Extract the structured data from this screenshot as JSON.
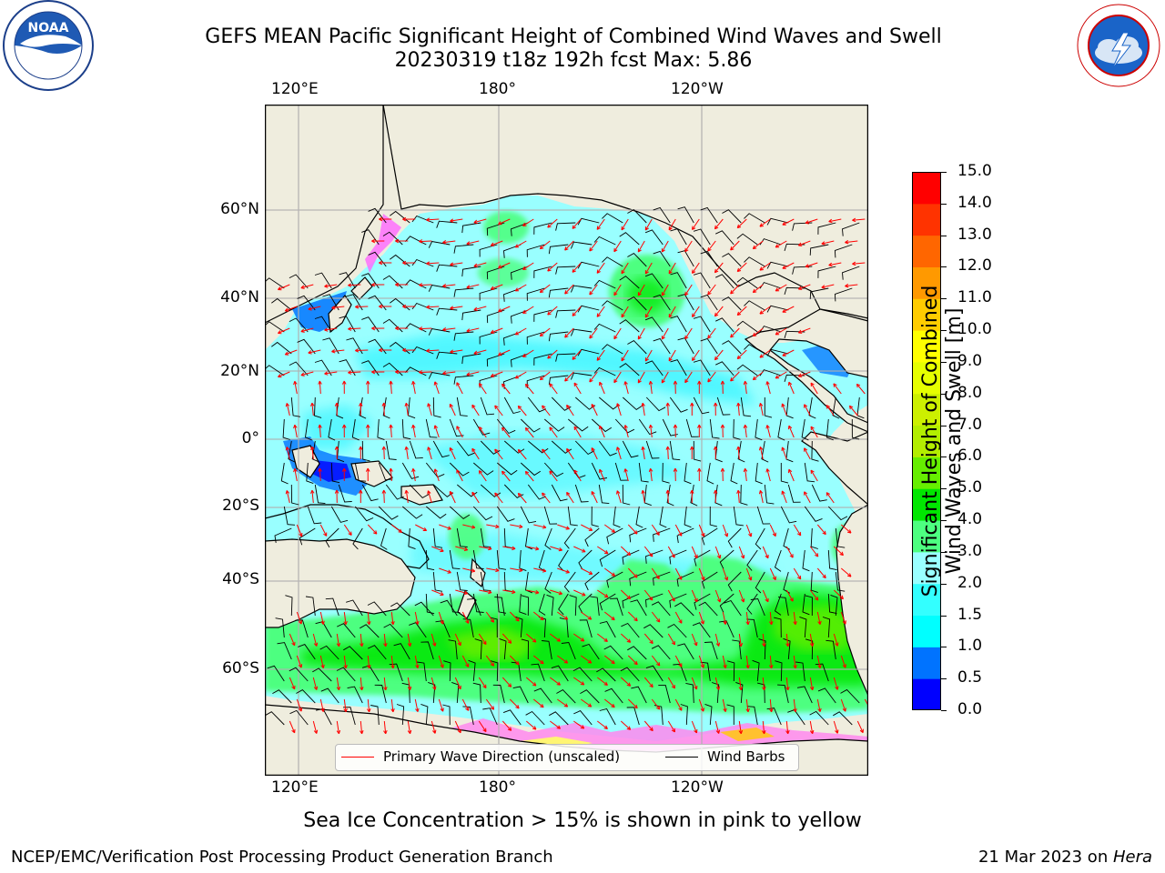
{
  "header": {
    "title_line1": "GEFS MEAN Pacific Significant Height of Combined Wind Waves and Swell",
    "title_line2": "20230319 t18z 192h fcst   Max: 5.86"
  },
  "logos": {
    "left": {
      "name": "noaa-logo",
      "text": "NOAA"
    },
    "right": {
      "name": "nws-logo",
      "text": "NATIONAL WEATHER SERVICE"
    }
  },
  "map": {
    "x_ticks_top": [
      "120°E",
      "180°",
      "120°W"
    ],
    "x_ticks_bottom": [
      "120°E",
      "180°",
      "120°W"
    ],
    "y_ticks": [
      "60°N",
      "40°N",
      "20°N",
      "0°",
      "20°S",
      "40°S",
      "60°S"
    ],
    "colors": {
      "land": "#efedde",
      "ocean_low": "#33e6ff",
      "wave_dir": "#ff0000",
      "barb": "#000000"
    }
  },
  "legend": {
    "primary_wave_direction": "Primary Wave Direction (unscaled)",
    "wind_barbs": "Wind Barbs"
  },
  "colorbar": {
    "label_line1": "Significant Height of Combined",
    "label_line2": "Wind Waves and Swell [m]",
    "ticks": [
      "0.0",
      "0.5",
      "1.0",
      "1.5",
      "2.0",
      "3.0",
      "4.0",
      "5.0",
      "6.0",
      "7.0",
      "8.0",
      "9.0",
      "10.0",
      "11.0",
      "12.0",
      "13.0",
      "14.0",
      "15.0"
    ],
    "colors": [
      "#0000ff",
      "#0073ff",
      "#00ffff",
      "#33ffff",
      "#99ffff",
      "#4dff80",
      "#00e600",
      "#66ee00",
      "#b3ee00",
      "#ccf000",
      "#e6ff00",
      "#ffff00",
      "#ffcc00",
      "#ff9900",
      "#ff6600",
      "#ff3300",
      "#ff0000"
    ]
  },
  "footer": {
    "sea_ice_note": "Sea Ice Concentration > 15% is shown in pink to yellow",
    "branch": "NCEP/EMC/Verification Post Processing Product Generation Branch",
    "date": "21 Mar 2023 on ",
    "machine": "Hera"
  }
}
